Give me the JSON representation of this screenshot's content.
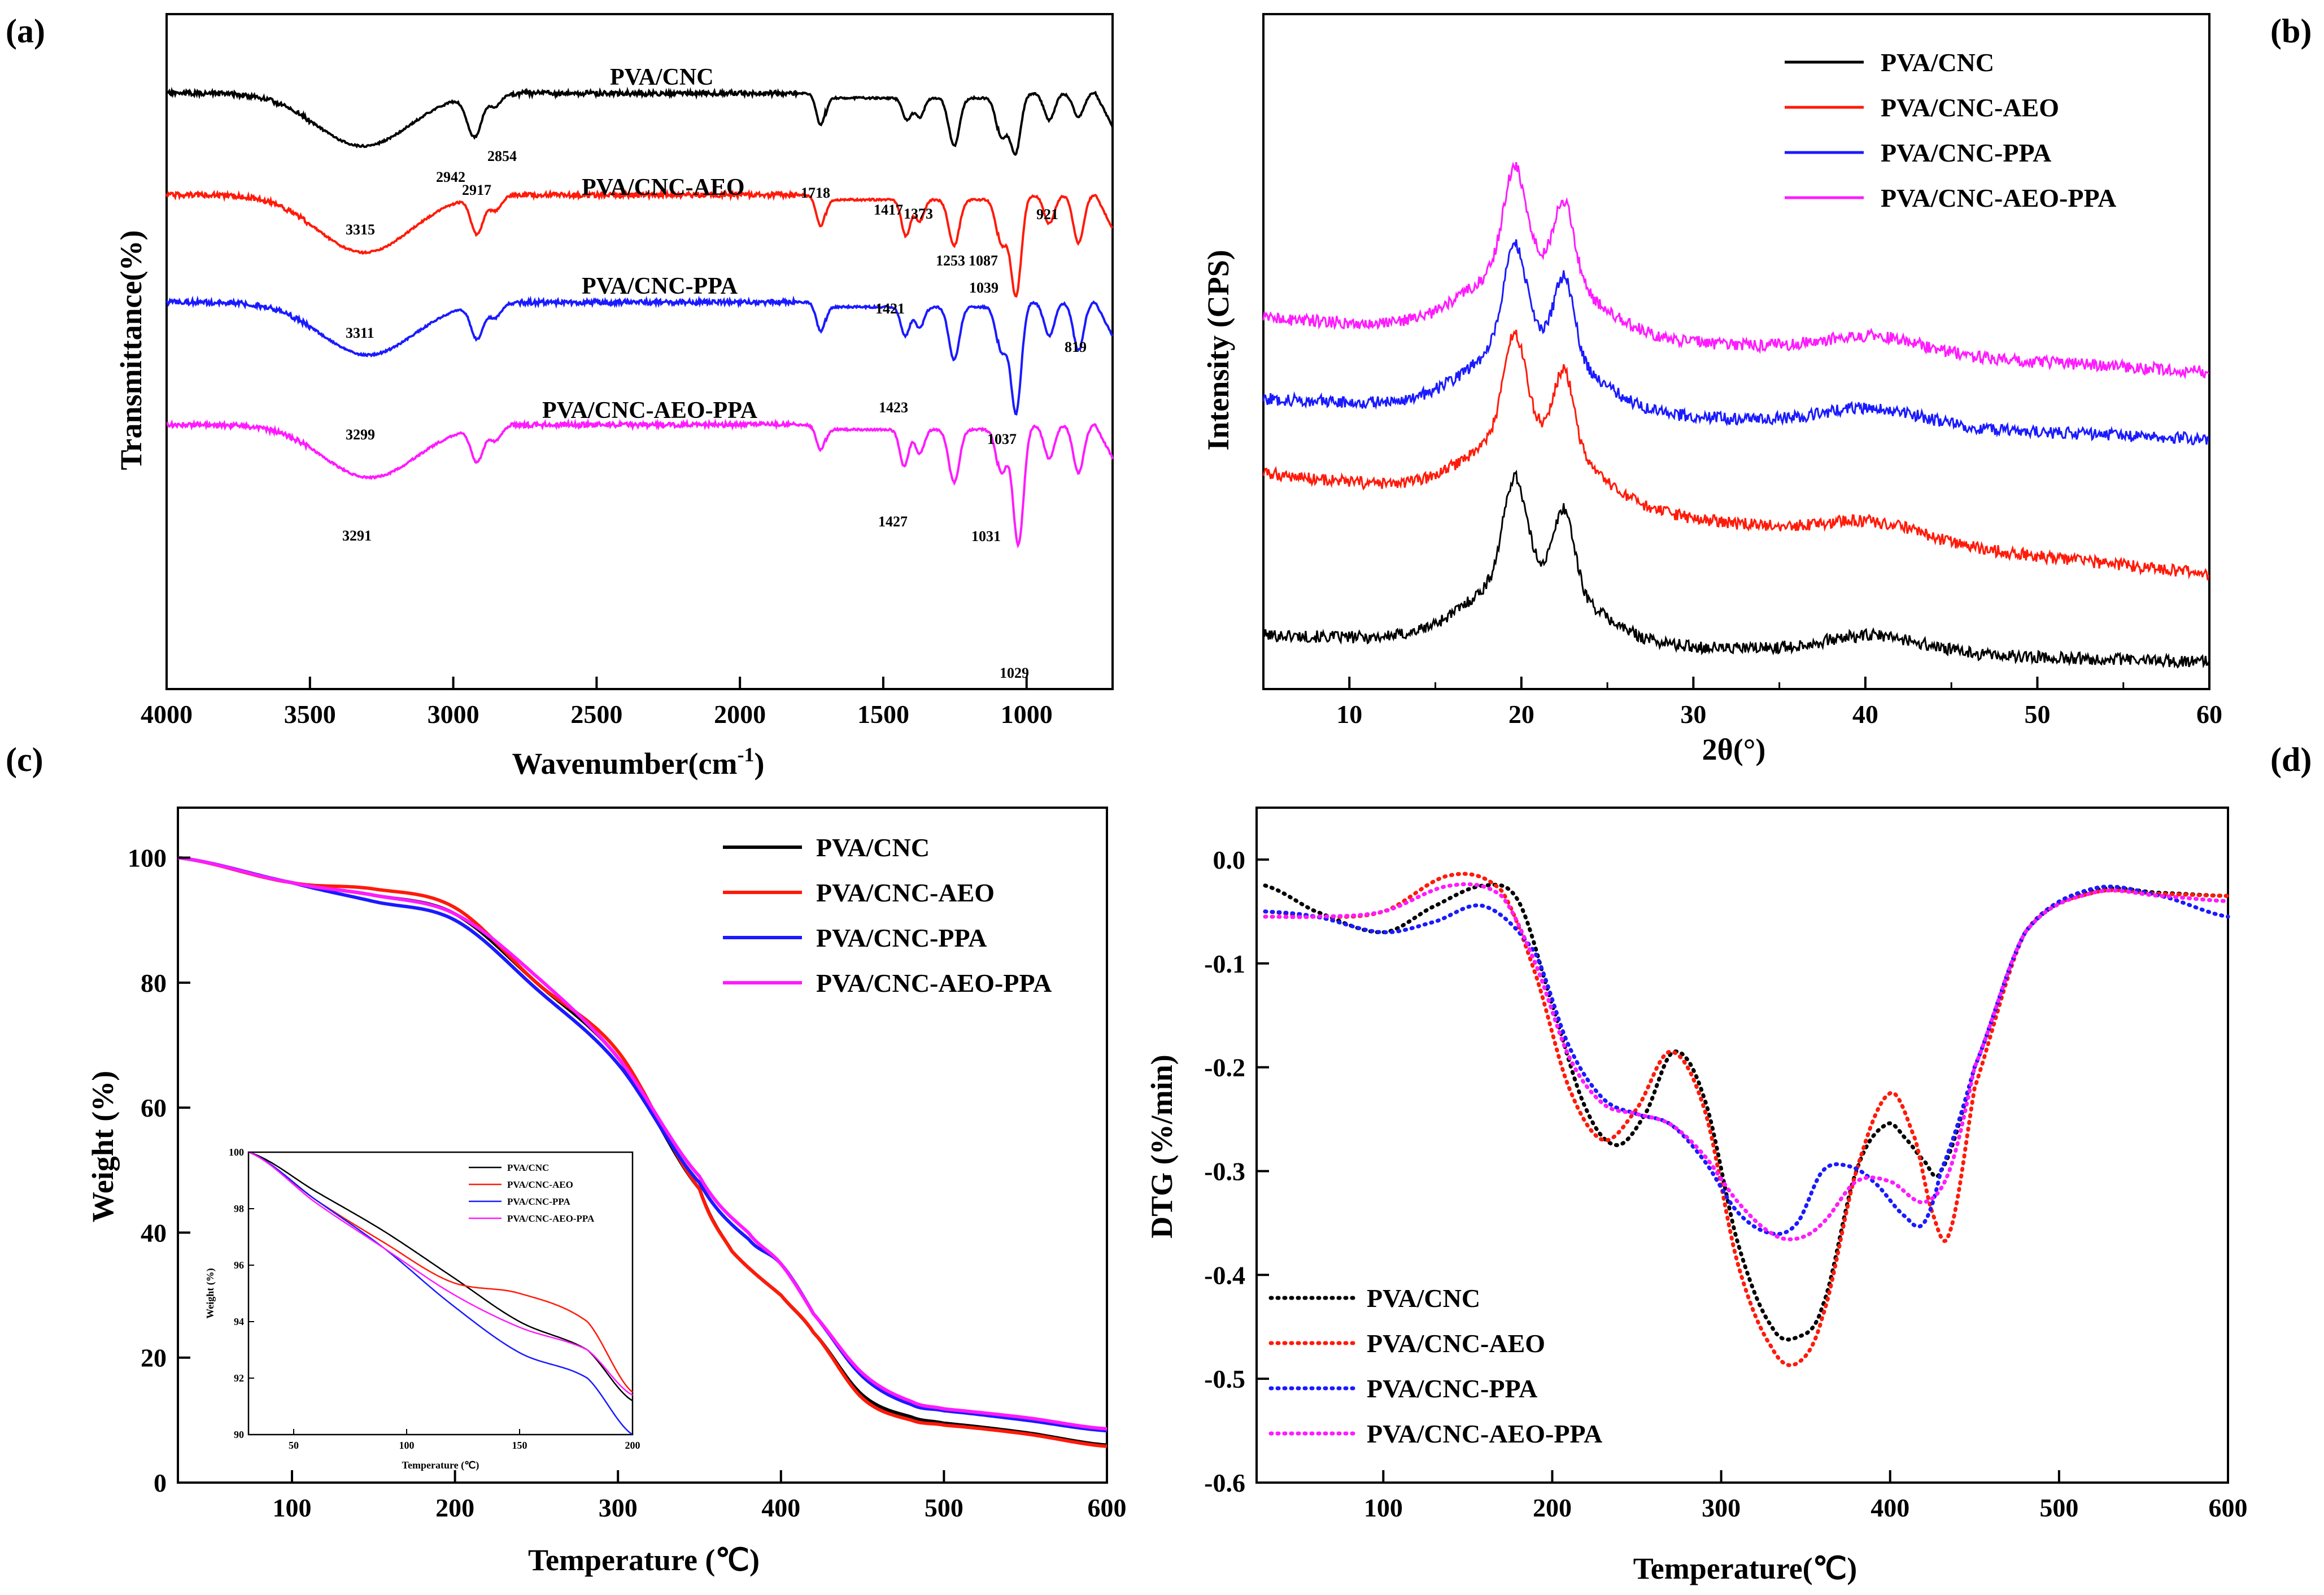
{
  "colors": {
    "black": "#000000",
    "red": "#ff1a0a",
    "blue": "#1a1aff",
    "magenta": "#ff1aff"
  },
  "series_names": [
    "PVA/CNC",
    "PVA/CNC-AEO",
    "PVA/CNC-PPA",
    "PVA/CNC-AEO-PPA"
  ],
  "chart_data": [
    {
      "id": "a",
      "panel_label": "(a)",
      "type": "line",
      "title": "",
      "xlabel_main": "Wavenumber(cm",
      "xlabel_sup": "-1",
      "xlabel_tail": ")",
      "ylabel": "Transmittance(%)",
      "xlim": [
        4000,
        700
      ],
      "x_ticks": [
        "4000",
        "3500",
        "3000",
        "2500",
        "2000",
        "1500",
        "1000"
      ],
      "y_ticks": [],
      "curve_labels": [
        "PVA/CNC",
        "PVA/CNC-AEO",
        "PVA/CNC-PPA",
        "PVA/CNC-AEO-PPA"
      ],
      "annotations": [
        "3315",
        "2942",
        "2917",
        "2854",
        "1718",
        "1417",
        "1373",
        "1253",
        "1087",
        "921",
        "1039",
        "3311",
        "1421",
        "819",
        "3299",
        "1423",
        "1037",
        "3291",
        "1427",
        "1031",
        "1029"
      ],
      "series": [
        {
          "name": "PVA/CNC",
          "color": "#000000",
          "offset": 0,
          "peaks": [
            [
              3315,
              0.55
            ],
            [
              2942,
              0.2
            ],
            [
              2917,
              0.3
            ],
            [
              2854,
              0.13
            ],
            [
              1718,
              0.33
            ],
            [
              1417,
              0.23
            ],
            [
              1373,
              0.2
            ],
            [
              1253,
              0.5
            ],
            [
              1087,
              0.45
            ],
            [
              1039,
              0.62
            ],
            [
              921,
              0.28
            ],
            [
              819,
              0.25
            ]
          ]
        },
        {
          "name": "PVA/CNC-AEO",
          "color": "#ff1a0a",
          "offset": 1,
          "peaks": [
            [
              3311,
              0.6
            ],
            [
              2917,
              0.38
            ],
            [
              2854,
              0.15
            ],
            [
              1718,
              0.32
            ],
            [
              1421,
              0.38
            ],
            [
              1373,
              0.22
            ],
            [
              1253,
              0.48
            ],
            [
              1087,
              0.5
            ],
            [
              1037,
              1.05
            ],
            [
              921,
              0.3
            ],
            [
              819,
              0.5
            ]
          ]
        },
        {
          "name": "PVA/CNC-PPA",
          "color": "#1a1aff",
          "offset": 2,
          "peaks": [
            [
              3299,
              0.55
            ],
            [
              2917,
              0.35
            ],
            [
              2854,
              0.15
            ],
            [
              1718,
              0.3
            ],
            [
              1423,
              0.3
            ],
            [
              1373,
              0.22
            ],
            [
              1253,
              0.55
            ],
            [
              1087,
              0.5
            ],
            [
              1037,
              1.15
            ],
            [
              921,
              0.35
            ],
            [
              819,
              0.5
            ]
          ]
        },
        {
          "name": "PVA/CNC-AEO-PPA",
          "color": "#ff1aff",
          "offset": 3,
          "peaks": [
            [
              3291,
              0.55
            ],
            [
              2917,
              0.35
            ],
            [
              2854,
              0.15
            ],
            [
              1718,
              0.26
            ],
            [
              1427,
              0.38
            ],
            [
              1373,
              0.25
            ],
            [
              1253,
              0.55
            ],
            [
              1087,
              0.5
            ],
            [
              1029,
              1.25
            ],
            [
              921,
              0.35
            ],
            [
              819,
              0.5
            ]
          ]
        }
      ]
    },
    {
      "id": "b",
      "panel_label": "(b)",
      "type": "line",
      "title": "",
      "xlabel": "2θ(°)",
      "ylabel": "Intensity (CPS)",
      "xlim": [
        5,
        60
      ],
      "x_ticks": [
        "10",
        "20",
        "30",
        "40",
        "50",
        "60"
      ],
      "y_ticks": [],
      "legend": [
        "PVA/CNC",
        "PVA/CNC-AEO",
        "PVA/CNC-PPA",
        "PVA/CNC-AEO-PPA"
      ],
      "legend_position": "top-right",
      "series": [
        {
          "name": "PVA/CNC",
          "color": "#000000",
          "peak_2theta": [
            19.6,
            22.5
          ],
          "baseline_start": 0.08,
          "baseline_end": 0.04
        },
        {
          "name": "PVA/CNC-AEO",
          "color": "#ff1a0a",
          "peak_2theta": [
            19.6,
            22.5
          ],
          "baseline_start": 0.32,
          "baseline_end": 0.17
        },
        {
          "name": "PVA/CNC-PPA",
          "color": "#1a1aff",
          "peak_2theta": [
            19.6,
            22.5
          ],
          "baseline_start": 0.43,
          "baseline_end": 0.37
        },
        {
          "name": "PVA/CNC-AEO-PPA",
          "color": "#ff1aff",
          "peak_2theta": [
            19.6,
            22.5
          ],
          "baseline_start": 0.55,
          "baseline_end": 0.47
        }
      ]
    },
    {
      "id": "c",
      "panel_label": "(c)",
      "type": "line",
      "title": "",
      "xlabel": "Temperature (℃)",
      "ylabel": "Weight (%)",
      "xlim": [
        30,
        600
      ],
      "ylim": [
        0,
        108
      ],
      "x_ticks": [
        100,
        200,
        300,
        400,
        500,
        600
      ],
      "y_ticks": [
        0,
        20,
        40,
        60,
        80,
        100
      ],
      "legend": [
        "PVA/CNC",
        "PVA/CNC-AEO",
        "PVA/CNC-PPA",
        "PVA/CNC-AEO-PPA"
      ],
      "legend_position": "top-right",
      "series": [
        {
          "name": "PVA/CNC",
          "color": "#000000",
          "x": [
            30,
            100,
            150,
            200,
            250,
            300,
            350,
            370,
            400,
            420,
            450,
            480,
            500,
            550,
            600
          ],
          "y": [
            100,
            96,
            94,
            91,
            80,
            68,
            47,
            37,
            30,
            24,
            14,
            10.5,
            9.5,
            8,
            6
          ]
        },
        {
          "name": "PVA/CNC-AEO",
          "color": "#ff1a0a",
          "x": [
            30,
            100,
            150,
            200,
            250,
            300,
            350,
            370,
            400,
            420,
            450,
            480,
            500,
            550,
            600
          ],
          "y": [
            100,
            96,
            95,
            92,
            80,
            69,
            47,
            37,
            30,
            24,
            13.5,
            10,
            9.2,
            7.8,
            5.8
          ]
        },
        {
          "name": "PVA/CNC-PPA",
          "color": "#1a1aff",
          "x": [
            30,
            100,
            150,
            200,
            250,
            300,
            350,
            380,
            400,
            420,
            450,
            480,
            500,
            550,
            600
          ],
          "y": [
            100,
            96,
            93,
            90,
            79,
            67,
            48,
            39,
            35,
            27,
            17,
            12.5,
            11.5,
            10,
            8.3
          ]
        },
        {
          "name": "PVA/CNC-AEO-PPA",
          "color": "#ff1aff",
          "x": [
            30,
            100,
            150,
            200,
            250,
            300,
            350,
            380,
            400,
            420,
            450,
            480,
            500,
            550,
            600
          ],
          "y": [
            100,
            96,
            94,
            91,
            81,
            68,
            49,
            40,
            35,
            27,
            17.5,
            13,
            11.8,
            10.4,
            8.6
          ]
        }
      ],
      "inset": {
        "xlabel": "Temperature (℃)",
        "ylabel": "Weight (%)",
        "xlim": [
          30,
          200
        ],
        "ylim": [
          90,
          100
        ],
        "x_ticks": [
          50,
          100,
          150,
          200
        ],
        "y_ticks": [
          90,
          92,
          94,
          96,
          98,
          100
        ],
        "legend": [
          "PVA/CNC",
          "PVA/CNC-AEO",
          "PVA/CNC-PPA",
          "PVA/CNC-AEO-PPA"
        ],
        "series": [
          {
            "name": "PVA/CNC",
            "color": "#000000",
            "x": [
              30,
              60,
              90,
              120,
              150,
              180,
              200
            ],
            "y": [
              100,
              98.6,
              97.2,
              95.6,
              94.0,
              93.0,
              91.2
            ]
          },
          {
            "name": "PVA/CNC-AEO",
            "color": "#ff1a0a",
            "x": [
              30,
              60,
              90,
              120,
              150,
              180,
              200
            ],
            "y": [
              100,
              98.3,
              96.8,
              95.4,
              95.0,
              94.0,
              91.5
            ]
          },
          {
            "name": "PVA/CNC-PPA",
            "color": "#1a1aff",
            "x": [
              30,
              60,
              90,
              120,
              150,
              180,
              200
            ],
            "y": [
              100,
              98.3,
              96.6,
              94.6,
              92.9,
              92.0,
              90.0
            ]
          },
          {
            "name": "PVA/CNC-AEO-PPA",
            "color": "#ff1aff",
            "x": [
              30,
              60,
              90,
              120,
              150,
              180,
              200
            ],
            "y": [
              100,
              98.2,
              96.6,
              95.0,
              93.8,
              93.0,
              91.4
            ]
          }
        ]
      }
    },
    {
      "id": "d",
      "panel_label": "(d)",
      "type": "line",
      "title": "",
      "xlabel": "Temperature(℃)",
      "ylabel": "DTG (%/min)",
      "xlim": [
        25,
        600
      ],
      "ylim": [
        -0.6,
        0.05
      ],
      "x_ticks": [
        100,
        200,
        300,
        400,
        500,
        600
      ],
      "y_ticks": [
        "0.0",
        "-0.1",
        "-0.2",
        "-0.3",
        "-0.4",
        "-0.5",
        "-0.6"
      ],
      "legend": [
        "PVA/CNC",
        "PVA/CNC-AEO",
        "PVA/CNC-PPA",
        "PVA/CNC-AEO-PPA"
      ],
      "legend_position": "bottom-left",
      "line_style": "dotted",
      "series": [
        {
          "name": "PVA/CNC",
          "color": "#000000",
          "x": [
            30,
            60,
            100,
            130,
            160,
            180,
            200,
            220,
            238,
            255,
            272,
            290,
            310,
            330,
            345,
            360,
            380,
            398,
            410,
            420,
            430,
            450,
            480,
            520,
            560,
            600
          ],
          "y": [
            -0.025,
            -0.05,
            -0.07,
            -0.045,
            -0.025,
            -0.04,
            -0.14,
            -0.24,
            -0.275,
            -0.245,
            -0.185,
            -0.23,
            -0.37,
            -0.45,
            -0.46,
            -0.43,
            -0.3,
            -0.255,
            -0.27,
            -0.29,
            -0.3,
            -0.2,
            -0.07,
            -0.03,
            -0.032,
            -0.035
          ]
        },
        {
          "name": "PVA/CNC-AEO",
          "color": "#ff1a0a",
          "x": [
            30,
            60,
            100,
            140,
            170,
            190,
            210,
            230,
            250,
            270,
            290,
            310,
            330,
            345,
            360,
            380,
            400,
            415,
            425,
            435,
            450,
            480,
            520,
            560,
            600
          ],
          "y": [
            -0.05,
            -0.055,
            -0.05,
            -0.015,
            -0.03,
            -0.11,
            -0.22,
            -0.27,
            -0.24,
            -0.185,
            -0.24,
            -0.39,
            -0.47,
            -0.485,
            -0.44,
            -0.3,
            -0.225,
            -0.27,
            -0.34,
            -0.36,
            -0.22,
            -0.07,
            -0.032,
            -0.033,
            -0.035
          ]
        },
        {
          "name": "PVA/CNC-PPA",
          "color": "#1a1aff",
          "x": [
            30,
            60,
            100,
            130,
            160,
            190,
            210,
            230,
            250,
            270,
            290,
            310,
            330,
            345,
            360,
            375,
            390,
            410,
            420,
            430,
            450,
            480,
            520,
            560,
            600
          ],
          "y": [
            -0.05,
            -0.055,
            -0.07,
            -0.06,
            -0.045,
            -0.09,
            -0.18,
            -0.23,
            -0.245,
            -0.255,
            -0.29,
            -0.34,
            -0.36,
            -0.35,
            -0.3,
            -0.295,
            -0.31,
            -0.345,
            -0.35,
            -0.3,
            -0.2,
            -0.07,
            -0.028,
            -0.035,
            -0.055
          ]
        },
        {
          "name": "PVA/CNC-AEO-PPA",
          "color": "#ff1aff",
          "x": [
            30,
            60,
            100,
            140,
            170,
            190,
            210,
            230,
            250,
            270,
            290,
            310,
            330,
            345,
            360,
            380,
            400,
            420,
            435,
            450,
            480,
            520,
            560,
            600
          ],
          "y": [
            -0.055,
            -0.055,
            -0.05,
            -0.025,
            -0.035,
            -0.1,
            -0.19,
            -0.235,
            -0.245,
            -0.255,
            -0.285,
            -0.33,
            -0.36,
            -0.365,
            -0.35,
            -0.31,
            -0.31,
            -0.33,
            -0.3,
            -0.2,
            -0.07,
            -0.032,
            -0.035,
            -0.04
          ]
        }
      ]
    }
  ]
}
